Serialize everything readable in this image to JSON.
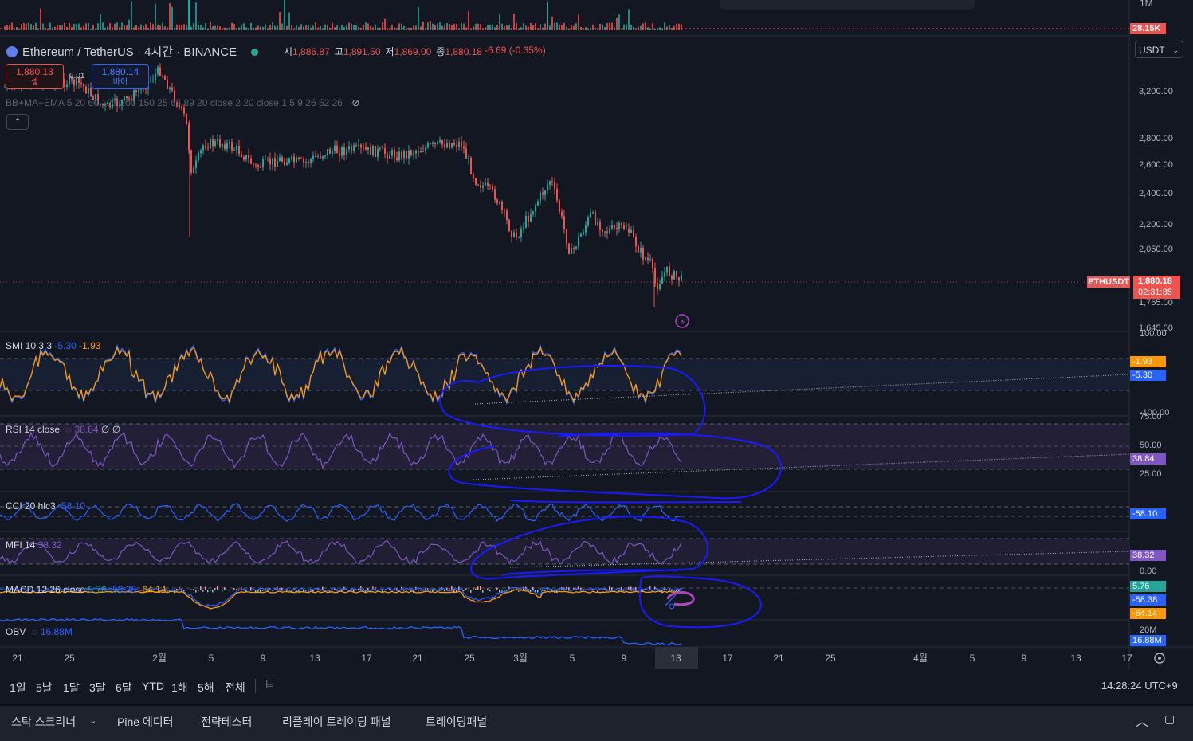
{
  "header": {
    "symbol": "Ethereum / TetherUS · 4시간 · BINANCE",
    "ohlc": [
      {
        "k": "시",
        "v": "1,886.87"
      },
      {
        "k": "고",
        "v": "1,891.50"
      },
      {
        "k": "저",
        "v": "1,869.00"
      },
      {
        "k": "종",
        "v": "1,880.18"
      }
    ],
    "change": "-6.69 (-0.35%)",
    "sell_price": "1,880.13",
    "sell_label": "셀",
    "spread": "0.01",
    "buy_price": "1,880.14",
    "buy_label": "바이",
    "indicator_line": "BB+MA+EMA 5 20 60 120 200 150 25 65 89 20 close 2 20 close 1.5 9 26 52 26",
    "currency": "USDT"
  },
  "price_axis": {
    "ticks": [
      "3,200.00",
      "2,800.00",
      "2,600.00",
      "2,400.00",
      "2,200.00",
      "2,050.00",
      "1,765.00",
      "1,645.00"
    ],
    "last_price_symbol": "ETHUSDT",
    "last_price": "1,880.18",
    "countdown": "02:31:35",
    "volume_label": "1M",
    "volume_value": "28.15K"
  },
  "indicators": {
    "smi": {
      "label": "SMI 10 3 3",
      "v1": "-5.30",
      "v2": "-1.93",
      "axis_top": "100.00",
      "axis_bottom": "-100.00",
      "tag1": "-1.93",
      "tag2": "-5.30"
    },
    "rsi": {
      "label": "RSI 14 close",
      "value": "38.84",
      "extra": "∅ ∅",
      "axis": [
        "75.00",
        "50.00",
        "25.00"
      ],
      "tag": "38.84"
    },
    "cci": {
      "label": "CCI 20 hlc3",
      "value": "-58.10",
      "tag": "-58.10"
    },
    "mfi": {
      "label": "MFI 14",
      "value": "38.32",
      "tag": "38.32",
      "axis": "0.00"
    },
    "macd": {
      "label": "MACD 12 26 close",
      "v1": "5.76",
      "v2": "-58.38",
      "v3": "-64.14",
      "tags": [
        "5.76",
        "-58.38",
        "-64.14"
      ]
    },
    "obv": {
      "label": "OBV",
      "value": "16.88M",
      "axis": "20M",
      "tag": "16.88M"
    }
  },
  "time_axis": [
    "21",
    "25",
    "2월",
    "5",
    "9",
    "13",
    "17",
    "21",
    "25",
    "3월",
    "5",
    "9",
    "13",
    "17",
    "21",
    "25",
    "4월",
    "5",
    "9",
    "13",
    "17"
  ],
  "toolbar": {
    "timeframes": [
      "1일",
      "5날",
      "1달",
      "3달",
      "6달",
      "YTD",
      "1해",
      "5해",
      "전체"
    ],
    "clock": "14:28:24 UTC+9"
  },
  "panels": [
    "스탁 스크리너",
    "Pine 에디터",
    "전략테스터",
    "리플레이 트레이딩 패널",
    "트레이딩패널"
  ],
  "colors": {
    "up": "#26a69a",
    "down": "#ef5350",
    "blue": "#2962ff",
    "orange": "#ff9800",
    "purple": "#7e57c2",
    "bg": "#131722"
  }
}
